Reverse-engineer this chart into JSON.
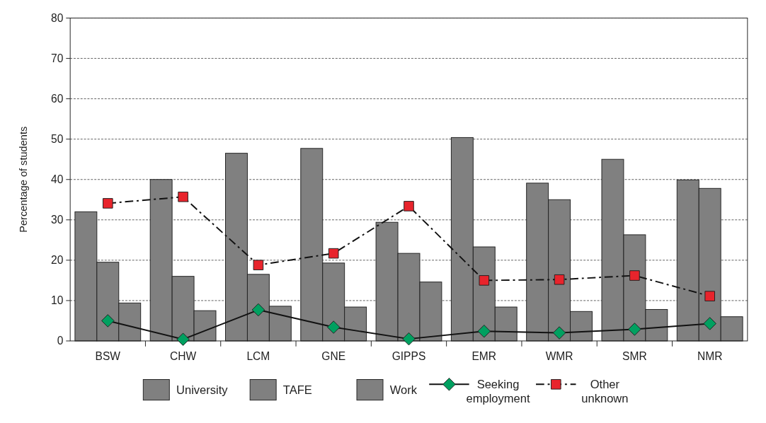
{
  "chart_data": {
    "type": "bar",
    "ylabel": "Percentage of students",
    "categories": [
      "BSW",
      "CHW",
      "LCM",
      "GNE",
      "GIPPS",
      "EMR",
      "WMR",
      "SMR",
      "NMR"
    ],
    "series": [
      {
        "name": "University",
        "color": "#808080",
        "values": [
          32,
          40,
          46.5,
          47.7,
          29.4,
          50.4,
          39.1,
          45,
          39.9
        ]
      },
      {
        "name": "TAFE",
        "color": "#808080",
        "values": [
          19.5,
          16,
          16.5,
          19.3,
          21.7,
          23.3,
          35,
          26.3,
          37.8
        ]
      },
      {
        "name": "Work",
        "color": "#808080",
        "values": [
          9.4,
          7.5,
          8.6,
          8.4,
          14.6,
          8.4,
          7.3,
          7.8,
          6
        ]
      },
      {
        "name": "Seeking employment",
        "type": "line",
        "color": "#00a060",
        "marker": "diamond",
        "line_style": "solid",
        "values": [
          5,
          0.4,
          7.7,
          3.4,
          0.5,
          2.4,
          2,
          2.9,
          4.3
        ]
      },
      {
        "name": "Other unknown",
        "type": "line",
        "color": "#e8242c",
        "marker": "square",
        "line_style": "dashed",
        "values": [
          34.1,
          35.7,
          18.8,
          21.7,
          33.4,
          15,
          15.2,
          16.2,
          11.1
        ]
      }
    ],
    "ylim": [
      0,
      80
    ],
    "yticks": [
      0,
      10,
      20,
      30,
      40,
      50,
      60,
      70,
      80
    ],
    "grid": "y",
    "legend": "bottom"
  }
}
